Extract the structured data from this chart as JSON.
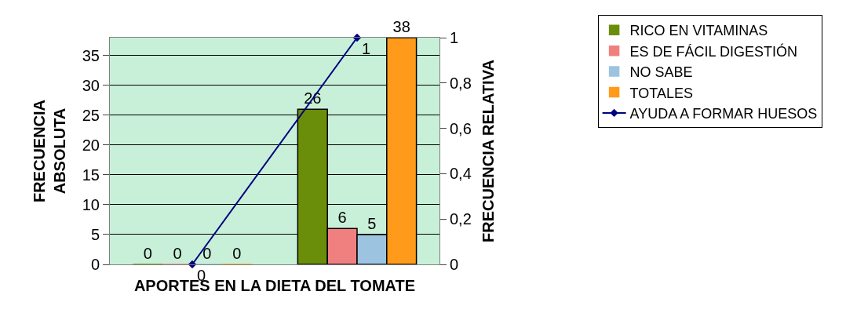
{
  "chart_data": {
    "type": "bar",
    "xlabel": "APORTES EN LA DIETA DEL TOMATE",
    "ylabel": "FRECUENCIA ABSOLUTA",
    "y2label": "FRECUENCIA RELATIVA",
    "categories": [
      null,
      null
    ],
    "series": [
      {
        "name": "RICO EN VITAMINAS",
        "color": "#6b8e0a",
        "values": [
          0,
          26
        ]
      },
      {
        "name": "ES DE FÁCIL DIGESTIÓN",
        "color": "#f08080",
        "values": [
          0,
          6
        ]
      },
      {
        "name": "NO SABE",
        "color": "#9cc4e0",
        "values": [
          0,
          5
        ]
      },
      {
        "name": "TOTALES",
        "color": "#ff9a1a",
        "values": [
          0,
          38
        ]
      },
      {
        "name": "AYUDA A FORMAR HUESOS",
        "color": "#000080",
        "type": "line",
        "axis": "y2",
        "marker": "diamond",
        "values": [
          0,
          1
        ]
      }
    ],
    "ylim": [
      0,
      38
    ],
    "yticks": [
      0,
      5,
      10,
      15,
      20,
      25,
      30,
      35
    ],
    "y2lim": [
      0,
      1
    ],
    "y2ticks": [
      0,
      {
        "value": 0.2,
        "label": "0,2"
      },
      {
        "value": 0.4,
        "label": "0,4"
      },
      {
        "value": 0.6,
        "label": "0,6"
      },
      {
        "value": 0.8,
        "label": "0,8"
      },
      1
    ],
    "grid": "y",
    "legend": "right",
    "data_labels": true
  }
}
